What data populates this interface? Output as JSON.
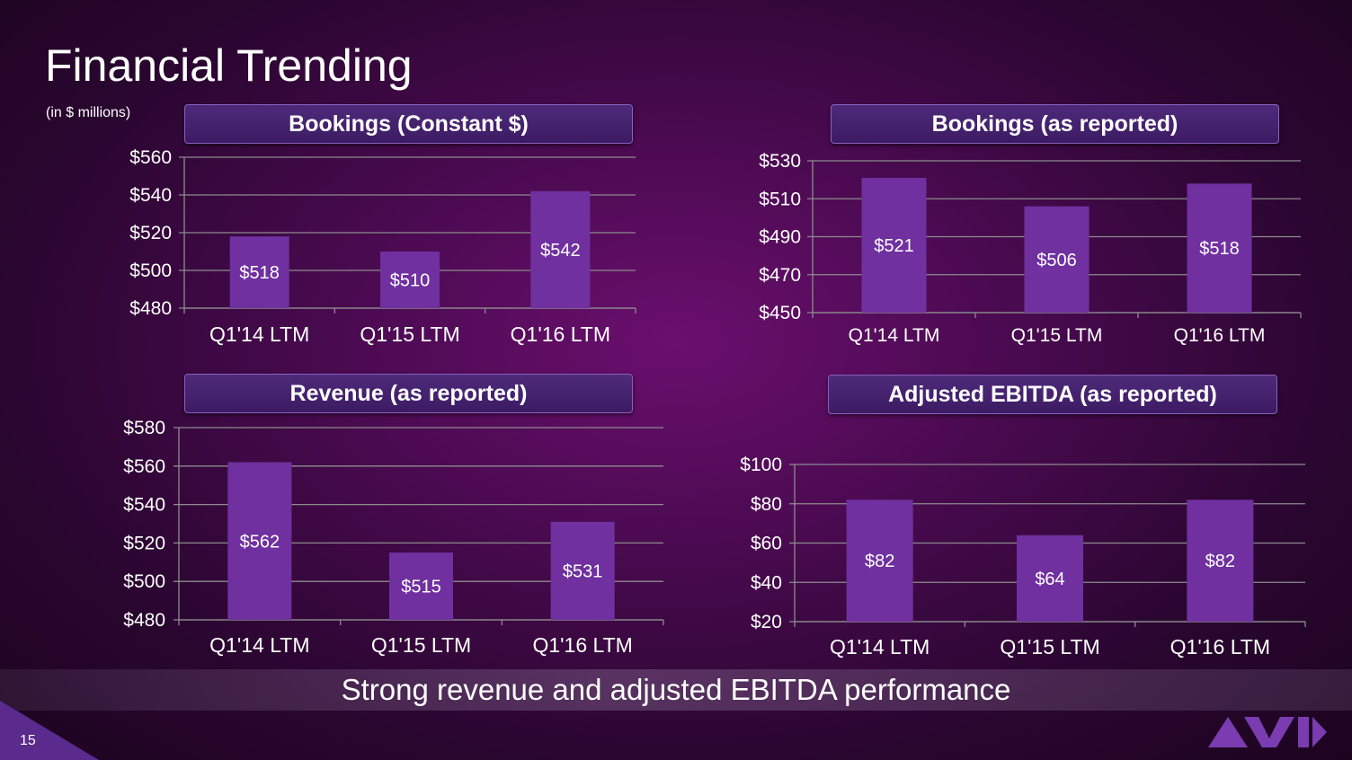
{
  "slide": {
    "title": "Financial Trending",
    "units_note": "(in $ millions)",
    "banner": "Strong revenue and adjusted EBITDA performance",
    "page_number": "15",
    "logo": "avid-logo"
  },
  "colors": {
    "bar": "#7030a0",
    "grid": "#8c8c8c",
    "accent": "#5a2a8c"
  },
  "chart_data": [
    {
      "type": "bar",
      "title": "Bookings (Constant $)",
      "categories": [
        "Q1'14 LTM",
        "Q1'15 LTM",
        "Q1'16 LTM"
      ],
      "values": [
        518,
        510,
        542
      ],
      "data_labels": [
        "$518",
        "$510",
        "$542"
      ],
      "ylim": [
        480,
        560
      ],
      "yticks": [
        480,
        500,
        520,
        540,
        560
      ],
      "ytick_labels": [
        "$480",
        "$500",
        "$520",
        "$540",
        "$560"
      ],
      "grid": true
    },
    {
      "type": "bar",
      "title": "Bookings (as reported)",
      "categories": [
        "Q1'14 LTM",
        "Q1'15 LTM",
        "Q1'16 LTM"
      ],
      "values": [
        521,
        506,
        518
      ],
      "data_labels": [
        "$521",
        "$506",
        "$518"
      ],
      "ylim": [
        450,
        530
      ],
      "yticks": [
        450,
        470,
        490,
        510,
        530
      ],
      "ytick_labels": [
        "$450",
        "$470",
        "$490",
        "$510",
        "$530"
      ],
      "grid": true
    },
    {
      "type": "bar",
      "title": "Revenue (as reported)",
      "categories": [
        "Q1'14 LTM",
        "Q1'15 LTM",
        "Q1'16 LTM"
      ],
      "values": [
        562,
        515,
        531
      ],
      "data_labels": [
        "$562",
        "$515",
        "$531"
      ],
      "ylim": [
        480,
        580
      ],
      "yticks": [
        480,
        500,
        520,
        540,
        560,
        580
      ],
      "ytick_labels": [
        "$480",
        "$500",
        "$520",
        "$540",
        "$560",
        "$580"
      ],
      "grid": true
    },
    {
      "type": "bar",
      "title": "Adjusted EBITDA (as reported)",
      "categories": [
        "Q1'14 LTM",
        "Q1'15 LTM",
        "Q1'16 LTM"
      ],
      "values": [
        82,
        64,
        82
      ],
      "data_labels": [
        "$82",
        "$64",
        "$82"
      ],
      "ylim": [
        20,
        100
      ],
      "yticks": [
        20,
        40,
        60,
        80,
        100
      ],
      "ytick_labels": [
        "$20",
        "$40",
        "$60",
        "$80",
        "$100"
      ],
      "grid": true
    }
  ]
}
